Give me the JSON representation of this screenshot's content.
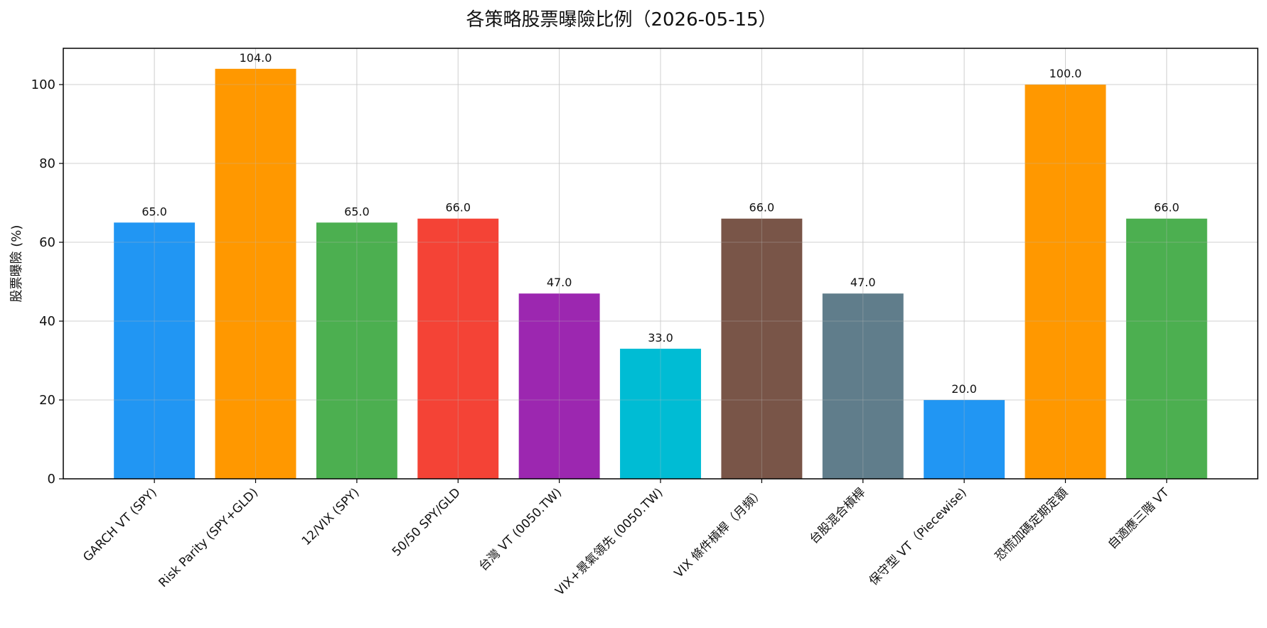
{
  "chart_data": {
    "type": "bar",
    "title": "各策略股票曝險比例（2026-05-15）",
    "xlabel": "",
    "ylabel": "股票曝險 (%)",
    "ylim": [
      0,
      109.2
    ],
    "yticks": [
      0,
      20,
      40,
      60,
      80,
      100
    ],
    "grid": true,
    "categories": [
      "GARCH VT (SPY)",
      "Risk Parity (SPY+GLD)",
      "12/VIX (SPY)",
      "50/50 SPY/GLD",
      "台灣 VT (0050.TW)",
      "VIX+景氣領先 (0050.TW)",
      "VIX 條件槓桿（月頻）",
      "台股混合槓桿",
      "保守型 VT（Piecewise)",
      "恐慌加碼定期定額",
      "自適應三階 VT"
    ],
    "values": [
      65.0,
      104.0,
      65.0,
      66.0,
      47.0,
      33.0,
      66.0,
      47.0,
      20.0,
      100.0,
      66.0
    ],
    "value_labels": [
      "65.0",
      "104.0",
      "65.0",
      "66.0",
      "47.0",
      "33.0",
      "66.0",
      "47.0",
      "20.0",
      "100.0",
      "66.0"
    ],
    "colors": [
      "#2196F3",
      "#FF9800",
      "#4CAF50",
      "#F44336",
      "#9C27B0",
      "#00BCD4",
      "#795548",
      "#607D8B",
      "#2196F3",
      "#FF9800",
      "#4CAF50"
    ]
  }
}
